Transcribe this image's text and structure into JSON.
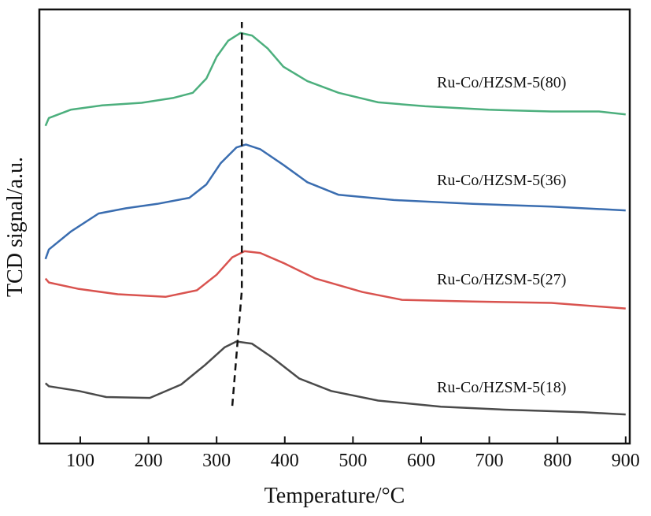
{
  "chart_data": {
    "type": "line",
    "title": "",
    "xlabel": "Temperature/°C",
    "ylabel": "TCD signal/a.u.",
    "xlim": [
      40,
      906
    ],
    "ylim": [
      0,
      100
    ],
    "xticks": [
      100,
      200,
      300,
      400,
      500,
      600,
      700,
      800,
      900
    ],
    "grid": false,
    "legend": "inline labels to the right of each curve",
    "series": [
      {
        "name": "Ru-Co/HZSM-5(80)",
        "color": "#4caf7d",
        "x": [
          49,
          54,
          86,
          132,
          190,
          236,
          265,
          285,
          300,
          317,
          335,
          352,
          375,
          398,
          433,
          479,
          537,
          606,
          699,
          791,
          861,
          900
        ],
        "y": [
          73.2,
          75.0,
          76.9,
          77.9,
          78.5,
          79.6,
          80.8,
          84.1,
          89.1,
          92.8,
          94.6,
          94.0,
          91.0,
          86.8,
          83.5,
          80.8,
          78.6,
          77.7,
          76.9,
          76.5,
          76.5,
          75.8
        ]
      },
      {
        "name": "Ru-Co/HZSM-5(36)",
        "color": "#3a6db0",
        "x": [
          49,
          54,
          86,
          127,
          167,
          213,
          260,
          285,
          306,
          329,
          343,
          364,
          398,
          433,
          479,
          560,
          676,
          791,
          900
        ],
        "y": [
          42.5,
          44.7,
          48.8,
          53.0,
          54.2,
          55.2,
          56.6,
          59.7,
          64.6,
          68.2,
          68.9,
          67.8,
          64.2,
          60.2,
          57.3,
          56.1,
          55.2,
          54.6,
          53.7
        ]
      },
      {
        "name": "Ru-Co/HZSM-5(27)",
        "color": "#d9534f",
        "x": [
          49,
          54,
          98,
          155,
          225,
          271,
          300,
          323,
          341,
          364,
          398,
          445,
          514,
          572,
          676,
          791,
          900
        ],
        "y": [
          38.0,
          37.1,
          35.6,
          34.4,
          33.8,
          35.3,
          38.9,
          42.9,
          44.3,
          43.9,
          41.6,
          38.0,
          34.9,
          33.1,
          32.7,
          32.4,
          31.1
        ]
      },
      {
        "name": "Ru-Co/HZSM-5(18)",
        "color": "#4a4a4a",
        "x": [
          49,
          54,
          98,
          138,
          202,
          248,
          283,
          312,
          329,
          352,
          381,
          421,
          468,
          537,
          629,
          722,
          838,
          900
        ],
        "y": [
          13.9,
          13.2,
          12.1,
          10.7,
          10.5,
          13.6,
          18.1,
          22.2,
          23.5,
          23.0,
          19.9,
          15.0,
          12.1,
          9.9,
          8.5,
          7.8,
          7.2,
          6.7
        ]
      }
    ],
    "annotations": [
      {
        "type": "dashed-line",
        "description": "peak position guide",
        "x": [
          323,
          337,
          337
        ],
        "y": [
          8.7,
          35.3,
          97.1
        ]
      }
    ]
  }
}
